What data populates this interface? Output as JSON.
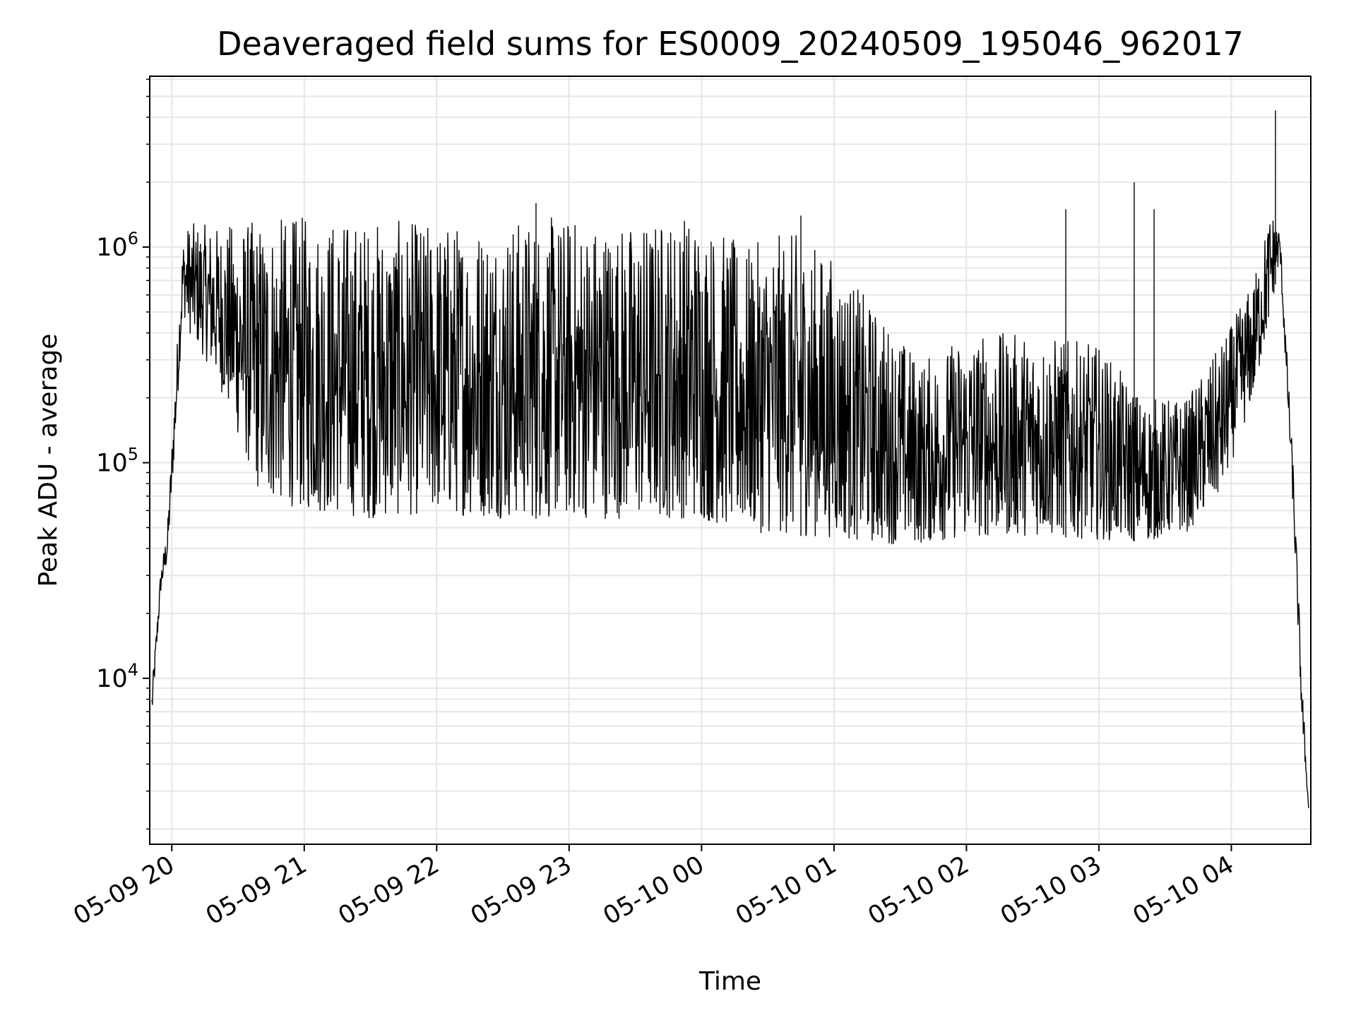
{
  "chart_data": {
    "type": "line",
    "title": "Deaveraged field sums for ES0009_20240509_195046_962017",
    "xlabel": "Time",
    "ylabel": "Peak ADU - average",
    "y_scale": "log",
    "ylim": [
      1700,
      6200000
    ],
    "xlim": [
      "2024-05-09 19:50",
      "2024-05-10 04:36"
    ],
    "grid": true,
    "colors": {
      "line": "#000000",
      "grid": "#e6e6e6",
      "axes": "#000000",
      "background": "#ffffff"
    },
    "x_ticks": [
      {
        "value": "2024-05-09 20:00",
        "label": "05-09 20"
      },
      {
        "value": "2024-05-09 21:00",
        "label": "05-09 21"
      },
      {
        "value": "2024-05-09 22:00",
        "label": "05-09 22"
      },
      {
        "value": "2024-05-09 23:00",
        "label": "05-09 23"
      },
      {
        "value": "2024-05-10 00:00",
        "label": "05-10 00"
      },
      {
        "value": "2024-05-10 01:00",
        "label": "05-10 01"
      },
      {
        "value": "2024-05-10 02:00",
        "label": "05-10 02"
      },
      {
        "value": "2024-05-10 03:00",
        "label": "05-10 03"
      },
      {
        "value": "2024-05-10 04:00",
        "label": "05-10 04"
      }
    ],
    "y_ticks": [
      {
        "value": 10000,
        "base": "10",
        "exp": "4"
      },
      {
        "value": 100000,
        "base": "10",
        "exp": "5"
      },
      {
        "value": 1000000,
        "base": "10",
        "exp": "6"
      }
    ],
    "series": [
      {
        "style": "upper envelope of noisy signal",
        "points": [
          [
            "2024-05-09 19:51",
            9000
          ],
          [
            "2024-05-09 19:55",
            32000
          ],
          [
            "2024-05-09 19:58",
            50000
          ],
          [
            "2024-05-09 20:02",
            300000
          ],
          [
            "2024-05-09 20:05",
            1100000
          ],
          [
            "2024-05-09 20:08",
            1300000
          ],
          [
            "2024-05-09 20:20",
            1250000
          ],
          [
            "2024-05-09 20:40",
            1350000
          ],
          [
            "2024-05-09 21:00",
            1400000
          ],
          [
            "2024-05-09 21:30",
            1350000
          ],
          [
            "2024-05-09 22:00",
            1300000
          ],
          [
            "2024-05-09 22:30",
            1350000
          ],
          [
            "2024-05-09 23:00",
            1400000
          ],
          [
            "2024-05-09 23:30",
            1300000
          ],
          [
            "2024-05-09 23:55",
            1500000
          ],
          [
            "2024-05-10 00:20",
            1000000
          ],
          [
            "2024-05-10 00:40",
            1200000
          ],
          [
            "2024-05-10 01:00",
            900000
          ],
          [
            "2024-05-10 01:20",
            500000
          ],
          [
            "2024-05-10 01:40",
            300000
          ],
          [
            "2024-05-10 02:00",
            400000
          ],
          [
            "2024-05-10 02:30",
            400000
          ],
          [
            "2024-05-10 03:00",
            350000
          ],
          [
            "2024-05-10 03:20",
            200000
          ],
          [
            "2024-05-10 03:40",
            200000
          ],
          [
            "2024-05-10 03:55",
            350000
          ],
          [
            "2024-05-10 04:10",
            700000
          ],
          [
            "2024-05-10 04:18",
            1500000
          ],
          [
            "2024-05-10 04:22",
            1200000
          ],
          [
            "2024-05-10 04:28",
            100000
          ],
          [
            "2024-05-10 04:32",
            10000
          ],
          [
            "2024-05-10 04:35",
            2500
          ]
        ]
      },
      {
        "style": "lower envelope of noisy signal",
        "points": [
          [
            "2024-05-09 19:51",
            6500
          ],
          [
            "2024-05-09 19:55",
            25000
          ],
          [
            "2024-05-09 19:58",
            35000
          ],
          [
            "2024-05-09 20:02",
            150000
          ],
          [
            "2024-05-09 20:05",
            500000
          ],
          [
            "2024-05-09 20:08",
            400000
          ],
          [
            "2024-05-09 20:20",
            250000
          ],
          [
            "2024-05-09 20:40",
            70000
          ],
          [
            "2024-05-09 21:00",
            60000
          ],
          [
            "2024-05-09 21:30",
            55000
          ],
          [
            "2024-05-09 22:00",
            58000
          ],
          [
            "2024-05-09 22:30",
            55000
          ],
          [
            "2024-05-09 23:00",
            55000
          ],
          [
            "2024-05-09 23:30",
            55000
          ],
          [
            "2024-05-09 23:55",
            55000
          ],
          [
            "2024-05-10 00:20",
            48000
          ],
          [
            "2024-05-10 00:40",
            46000
          ],
          [
            "2024-05-10 01:00",
            45000
          ],
          [
            "2024-05-10 01:20",
            42000
          ],
          [
            "2024-05-10 01:40",
            42000
          ],
          [
            "2024-05-10 02:00",
            45000
          ],
          [
            "2024-05-10 02:30",
            46000
          ],
          [
            "2024-05-10 03:00",
            44000
          ],
          [
            "2024-05-10 03:20",
            43000
          ],
          [
            "2024-05-10 03:40",
            48000
          ],
          [
            "2024-05-10 03:55",
            70000
          ],
          [
            "2024-05-10 04:10",
            200000
          ],
          [
            "2024-05-10 04:18",
            500000
          ],
          [
            "2024-05-10 04:22",
            900000
          ],
          [
            "2024-05-10 04:28",
            60000
          ],
          [
            "2024-05-10 04:32",
            6000
          ],
          [
            "2024-05-10 04:35",
            2500
          ]
        ]
      }
    ],
    "spikes": [
      [
        "2024-05-09 22:45",
        1600000
      ],
      [
        "2024-05-10 00:45",
        1400000
      ],
      [
        "2024-05-10 02:45",
        1500000
      ],
      [
        "2024-05-10 03:16",
        2000000
      ],
      [
        "2024-05-10 03:25",
        1500000
      ],
      [
        "2024-05-10 04:20",
        4300000
      ]
    ]
  }
}
